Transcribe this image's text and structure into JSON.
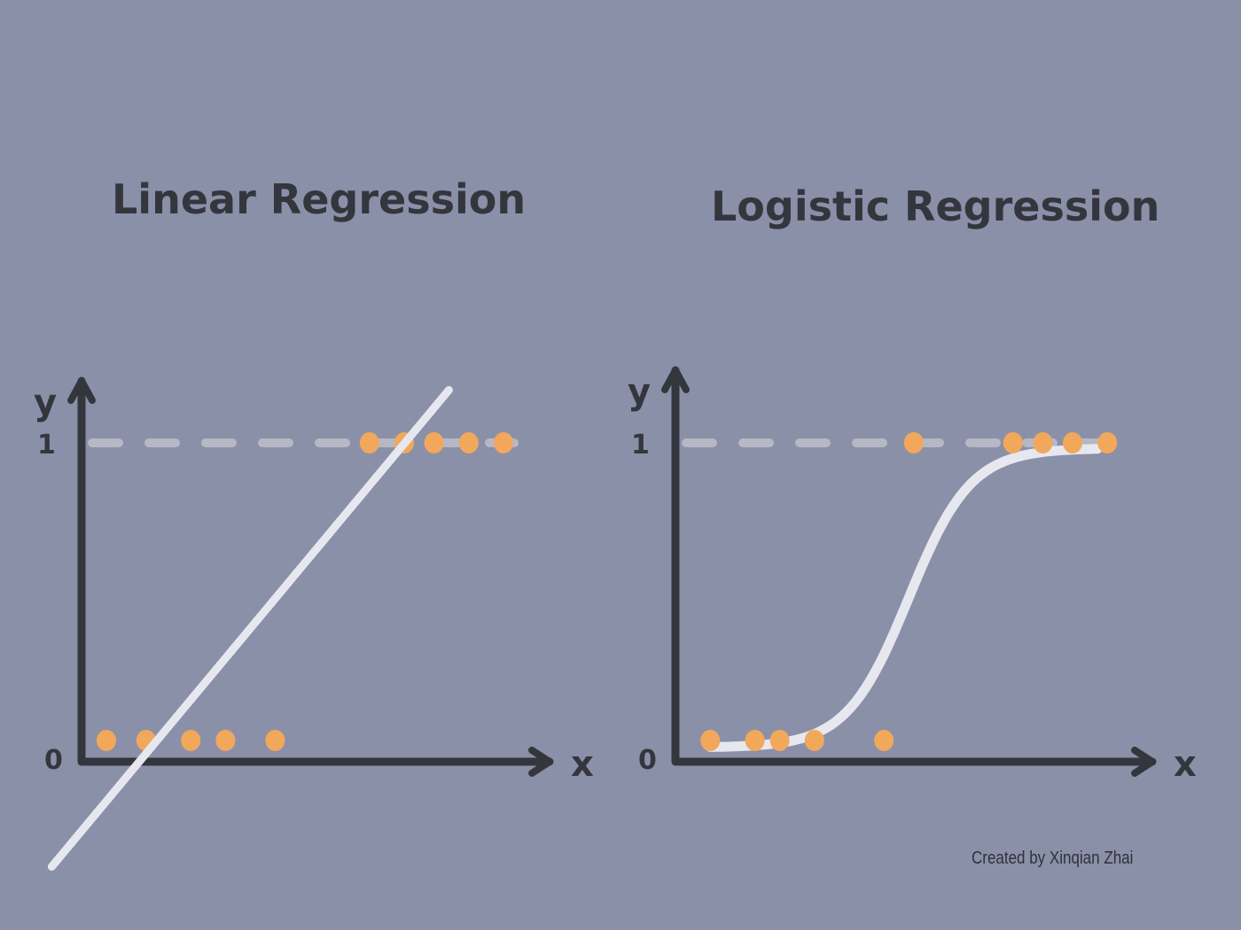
{
  "credit": "Created by Xinqian Zhai",
  "colors": {
    "background": "#8b90a9",
    "axis": "#34363d",
    "points": "#f2a85a",
    "fit_line": "#e7e8ef",
    "guide_line": "#b6b8c4"
  },
  "chart_data": [
    {
      "type": "scatter",
      "title": "Linear Regression",
      "xlabel": "x",
      "ylabel": "y",
      "y_ticks": [
        "0",
        "1"
      ],
      "ylim": [
        0,
        1
      ],
      "guide_line_y": 1,
      "fit": "linear",
      "series": [
        {
          "points": [
            {
              "x": 0.05,
              "y": 0
            },
            {
              "x": 0.13,
              "y": 0
            },
            {
              "x": 0.22,
              "y": 0
            },
            {
              "x": 0.29,
              "y": 0
            },
            {
              "x": 0.39,
              "y": 0
            },
            {
              "x": 0.58,
              "y": 1
            },
            {
              "x": 0.65,
              "y": 1
            },
            {
              "x": 0.71,
              "y": 1
            },
            {
              "x": 0.78,
              "y": 1
            },
            {
              "x": 0.85,
              "y": 1
            }
          ]
        }
      ]
    },
    {
      "type": "scatter",
      "title": "Logistic Regression",
      "xlabel": "x",
      "ylabel": "y",
      "y_ticks": [
        "0",
        "1"
      ],
      "ylim": [
        0,
        1
      ],
      "guide_line_y": 1,
      "fit": "logistic",
      "series": [
        {
          "points": [
            {
              "x": 0.07,
              "y": 0
            },
            {
              "x": 0.16,
              "y": 0
            },
            {
              "x": 0.21,
              "y": 0
            },
            {
              "x": 0.28,
              "y": 0
            },
            {
              "x": 0.42,
              "y": 0
            },
            {
              "x": 0.48,
              "y": 1
            },
            {
              "x": 0.68,
              "y": 1
            },
            {
              "x": 0.74,
              "y": 1
            },
            {
              "x": 0.8,
              "y": 1
            },
            {
              "x": 0.87,
              "y": 1
            }
          ]
        }
      ]
    }
  ]
}
